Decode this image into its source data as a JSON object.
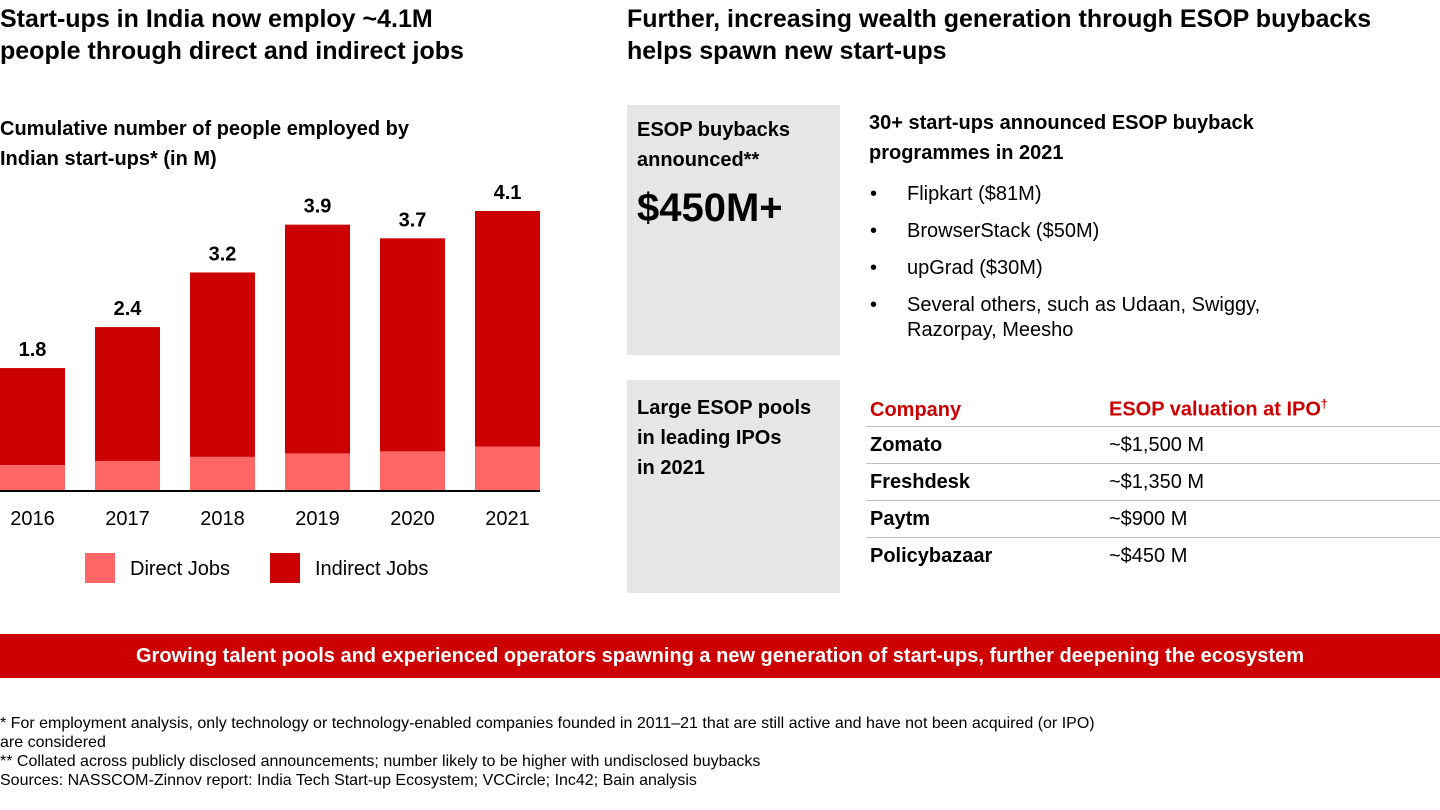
{
  "left": {
    "title_line1": "Start-ups in India now employ ~4.1M",
    "title_line2": "people through direct and indirect jobs",
    "subtitle_line1": "Cumulative number of people employed by",
    "subtitle_line2": "Indian start-ups* (in M)"
  },
  "chart_data": {
    "type": "bar",
    "stacked": true,
    "categories": [
      "2016",
      "2017",
      "2018",
      "2019",
      "2020",
      "2021"
    ],
    "totals": [
      "1.8",
      "2.4",
      "3.2",
      "3.9",
      "3.7",
      "4.1"
    ],
    "series": [
      {
        "name": "Direct Jobs",
        "color": "#ff6666",
        "values": [
          0.38,
          0.44,
          0.5,
          0.55,
          0.58,
          0.65
        ]
      },
      {
        "name": "Indirect Jobs",
        "color": "#cc0000",
        "values": [
          1.42,
          1.96,
          2.7,
          3.35,
          3.12,
          3.45
        ]
      }
    ],
    "ylim": [
      0,
      4.1
    ],
    "legend_position": "bottom"
  },
  "right": {
    "title_line1": "Further, increasing wealth generation through ESOP buybacks",
    "title_line2": "helps spawn new start-ups",
    "box1_label_line1": "ESOP buybacks",
    "box1_label_line2": "announced**",
    "box1_value": "$450M+",
    "buyback_heading_line1": "30+ start-ups announced ESOP buyback",
    "buyback_heading_line2": "programmes in 2021",
    "bullet_char": "•",
    "bullets": [
      "Flipkart ($81M)",
      "BrowserStack ($50M)",
      "upGrad ($30M)",
      "Several others, such as Udaan, Swiggy, Razorpay, Meesho"
    ],
    "box2_label_line1": "Large ESOP pools",
    "box2_label_line2": "in leading IPOs",
    "box2_label_line3": "in 2021",
    "table": {
      "col_company": "Company",
      "col_valuation": "ESOP valuation at IPO",
      "col_valuation_mark": "†",
      "rows": [
        {
          "company": "Zomato",
          "valuation": "~$1,500 M"
        },
        {
          "company": "Freshdesk",
          "valuation": "~$1,350 M"
        },
        {
          "company": "Paytm",
          "valuation": "~$900 M"
        },
        {
          "company": "Policybazaar",
          "valuation": "~$450 M"
        }
      ]
    }
  },
  "banner": "Growing talent pools and experienced operators spawning a new generation of start-ups, further deepening the ecosystem",
  "footnotes": {
    "note1_line1": "* For employment analysis, only technology or technology-enabled companies founded in 2011–21 that are still active and have not been acquired (or IPO)",
    "note1_line2": "are considered",
    "note2": "** Collated across publicly disclosed announcements; number likely to be higher with undisclosed buybacks",
    "sources": "Sources: NASSCOM-Zinnov report: India Tech Start-up Ecosystem; VCCircle; Inc42; Bain analysis"
  }
}
